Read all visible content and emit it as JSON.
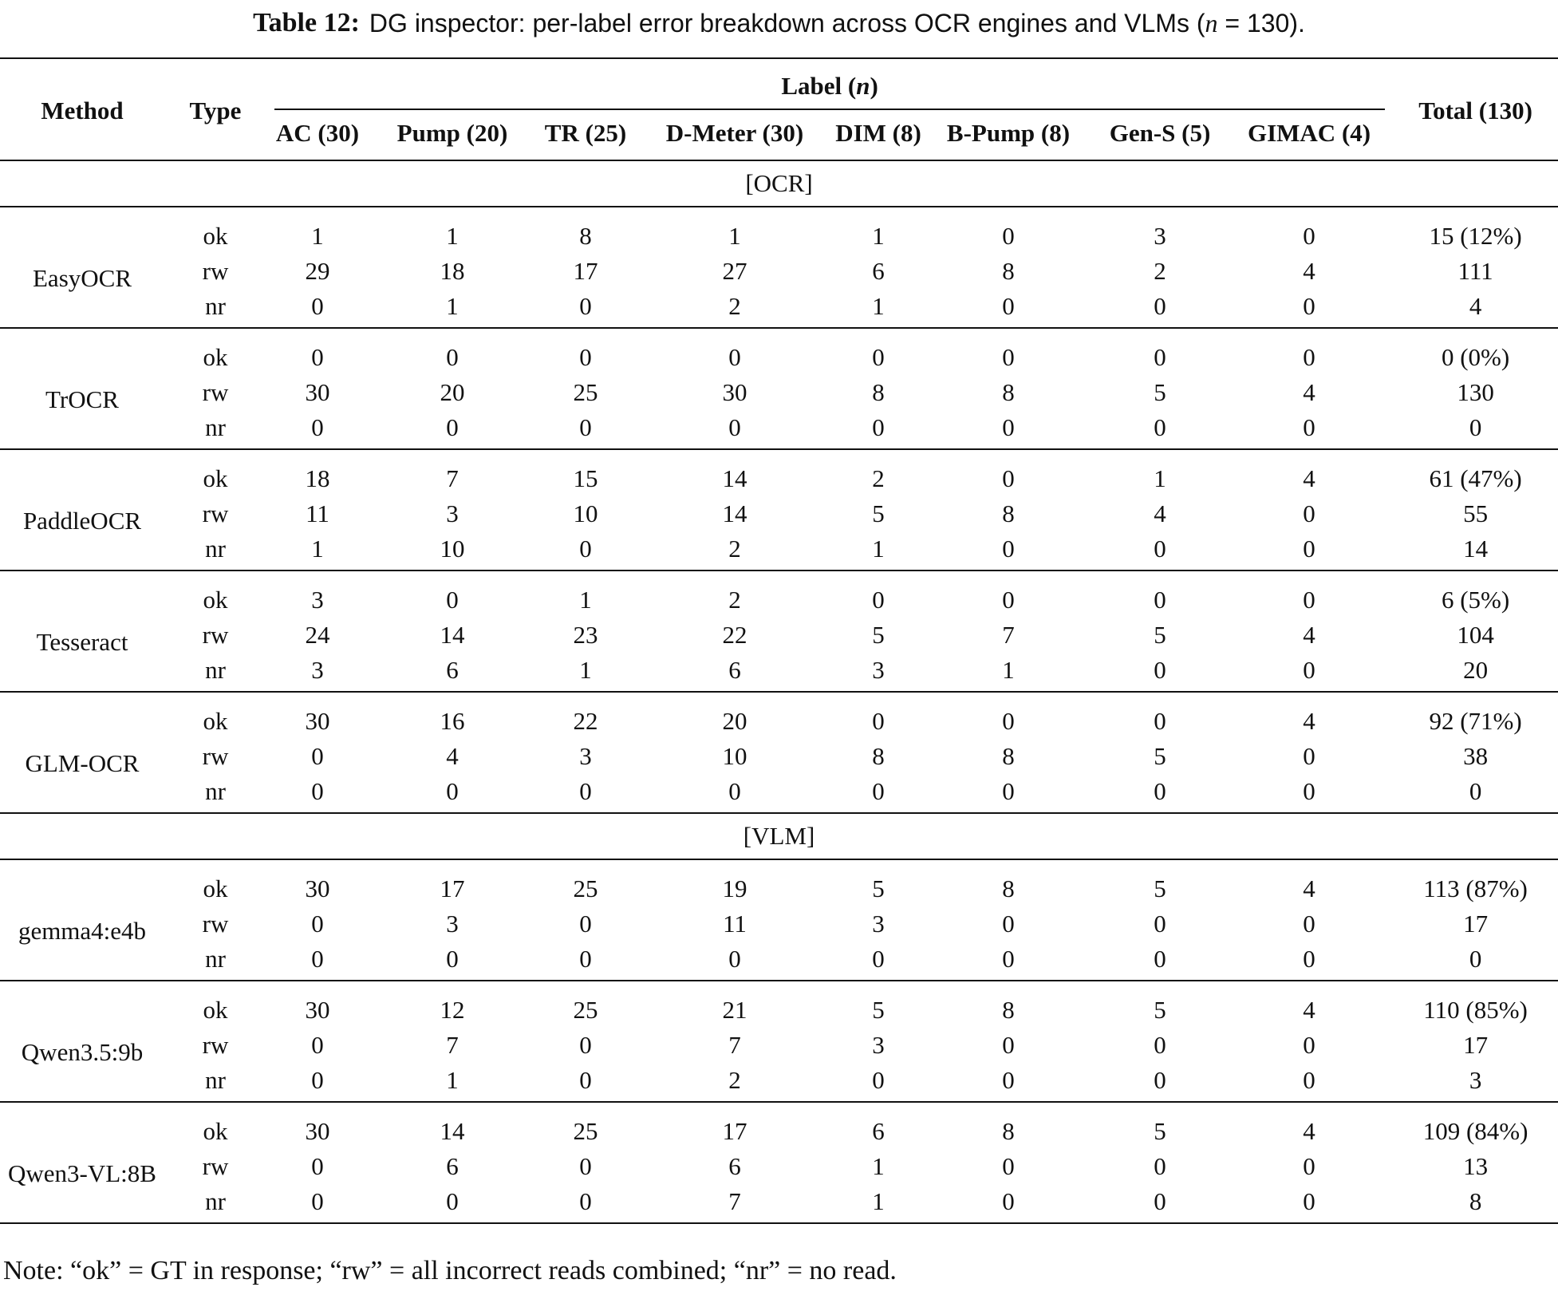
{
  "caption": {
    "label": "Table 12:",
    "text_pre": "DG inspector: per-label error breakdown across OCR engines and VLMs (",
    "n_symbol": "n",
    "text_post": " = 130)."
  },
  "header": {
    "method": "Method",
    "type": "Type",
    "label_group": "Label (",
    "label_group_n": "n",
    "label_group_close": ")",
    "total": "Total (130)",
    "columns": [
      "AC (30)",
      "Pump (20)",
      "TR (25)",
      "D-Meter (30)",
      "DIM (8)",
      "B-Pump (8)",
      "Gen-S (5)",
      "GIMAC (4)"
    ]
  },
  "sections": [
    {
      "title": "[OCR]",
      "methods": [
        {
          "name": "EasyOCR",
          "rows": [
            {
              "type": "ok",
              "values": [
                "1",
                "1",
                "8",
                "1",
                "1",
                "0",
                "3",
                "0"
              ],
              "total": "15 (12%)"
            },
            {
              "type": "rw",
              "values": [
                "29",
                "18",
                "17",
                "27",
                "6",
                "8",
                "2",
                "4"
              ],
              "total": "111"
            },
            {
              "type": "nr",
              "values": [
                "0",
                "1",
                "0",
                "2",
                "1",
                "0",
                "0",
                "0"
              ],
              "total": "4"
            }
          ]
        },
        {
          "name": "TrOCR",
          "rows": [
            {
              "type": "ok",
              "values": [
                "0",
                "0",
                "0",
                "0",
                "0",
                "0",
                "0",
                "0"
              ],
              "total": "0 (0%)"
            },
            {
              "type": "rw",
              "values": [
                "30",
                "20",
                "25",
                "30",
                "8",
                "8",
                "5",
                "4"
              ],
              "total": "130"
            },
            {
              "type": "nr",
              "values": [
                "0",
                "0",
                "0",
                "0",
                "0",
                "0",
                "0",
                "0"
              ],
              "total": "0"
            }
          ]
        },
        {
          "name": "PaddleOCR",
          "rows": [
            {
              "type": "ok",
              "values": [
                "18",
                "7",
                "15",
                "14",
                "2",
                "0",
                "1",
                "4"
              ],
              "total": "61 (47%)"
            },
            {
              "type": "rw",
              "values": [
                "11",
                "3",
                "10",
                "14",
                "5",
                "8",
                "4",
                "0"
              ],
              "total": "55"
            },
            {
              "type": "nr",
              "values": [
                "1",
                "10",
                "0",
                "2",
                "1",
                "0",
                "0",
                "0"
              ],
              "total": "14"
            }
          ]
        },
        {
          "name": "Tesseract",
          "rows": [
            {
              "type": "ok",
              "values": [
                "3",
                "0",
                "1",
                "2",
                "0",
                "0",
                "0",
                "0"
              ],
              "total": "6 (5%)"
            },
            {
              "type": "rw",
              "values": [
                "24",
                "14",
                "23",
                "22",
                "5",
                "7",
                "5",
                "4"
              ],
              "total": "104"
            },
            {
              "type": "nr",
              "values": [
                "3",
                "6",
                "1",
                "6",
                "3",
                "1",
                "0",
                "0"
              ],
              "total": "20"
            }
          ]
        },
        {
          "name": "GLM-OCR",
          "rows": [
            {
              "type": "ok",
              "values": [
                "30",
                "16",
                "22",
                "20",
                "0",
                "0",
                "0",
                "4"
              ],
              "total": "92 (71%)"
            },
            {
              "type": "rw",
              "values": [
                "0",
                "4",
                "3",
                "10",
                "8",
                "8",
                "5",
                "0"
              ],
              "total": "38"
            },
            {
              "type": "nr",
              "values": [
                "0",
                "0",
                "0",
                "0",
                "0",
                "0",
                "0",
                "0"
              ],
              "total": "0"
            }
          ]
        }
      ]
    },
    {
      "title": "[VLM]",
      "methods": [
        {
          "name": "gemma4:e4b",
          "rows": [
            {
              "type": "ok",
              "values": [
                "30",
                "17",
                "25",
                "19",
                "5",
                "8",
                "5",
                "4"
              ],
              "total": "113 (87%)"
            },
            {
              "type": "rw",
              "values": [
                "0",
                "3",
                "0",
                "11",
                "3",
                "0",
                "0",
                "0"
              ],
              "total": "17"
            },
            {
              "type": "nr",
              "values": [
                "0",
                "0",
                "0",
                "0",
                "0",
                "0",
                "0",
                "0"
              ],
              "total": "0"
            }
          ]
        },
        {
          "name": "Qwen3.5:9b",
          "rows": [
            {
              "type": "ok",
              "values": [
                "30",
                "12",
                "25",
                "21",
                "5",
                "8",
                "5",
                "4"
              ],
              "total": "110 (85%)"
            },
            {
              "type": "rw",
              "values": [
                "0",
                "7",
                "0",
                "7",
                "3",
                "0",
                "0",
                "0"
              ],
              "total": "17"
            },
            {
              "type": "nr",
              "values": [
                "0",
                "1",
                "0",
                "2",
                "0",
                "0",
                "0",
                "0"
              ],
              "total": "3"
            }
          ]
        },
        {
          "name": "Qwen3-VL:8B",
          "rows": [
            {
              "type": "ok",
              "values": [
                "30",
                "14",
                "25",
                "17",
                "6",
                "8",
                "5",
                "4"
              ],
              "total": "109 (84%)"
            },
            {
              "type": "rw",
              "values": [
                "0",
                "6",
                "0",
                "6",
                "1",
                "0",
                "0",
                "0"
              ],
              "total": "13"
            },
            {
              "type": "nr",
              "values": [
                "0",
                "0",
                "0",
                "7",
                "1",
                "0",
                "0",
                "0"
              ],
              "total": "8"
            }
          ]
        }
      ]
    }
  ],
  "note": "Note: “ok” = GT in response; “rw” = all incorrect reads combined; “nr” = no read."
}
